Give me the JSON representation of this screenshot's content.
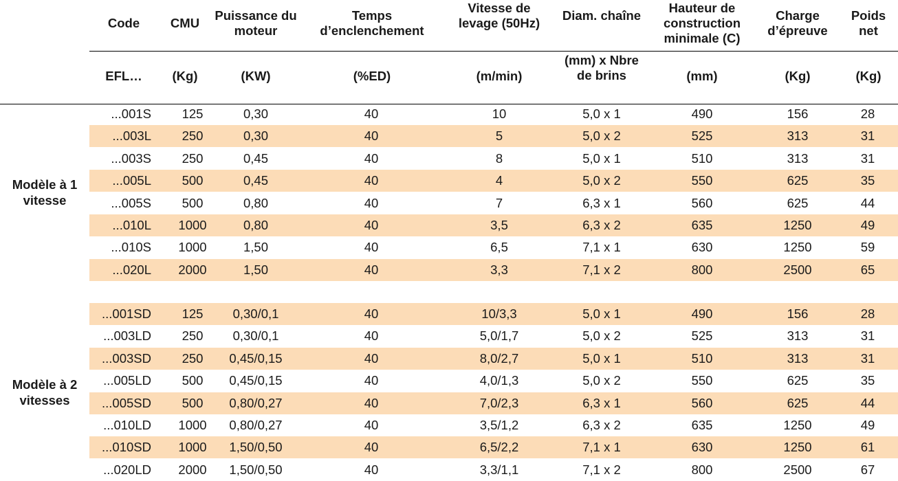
{
  "table": {
    "headers": [
      {
        "key": "code",
        "label": "Code",
        "unit": "EFL…"
      },
      {
        "key": "cmu",
        "label": "CMU",
        "unit": "(Kg)"
      },
      {
        "key": "puissance",
        "label": "Puissance du moteur",
        "unit": "(KW)"
      },
      {
        "key": "temps",
        "label": "Temps d’enclenchement",
        "unit": "(%ED)"
      },
      {
        "key": "vitesse",
        "label": "Vitesse de levage (50Hz)",
        "unit": "(m/min)"
      },
      {
        "key": "diam",
        "label": "Diam. chaîne",
        "unit": "(mm) x Nbre de brins"
      },
      {
        "key": "hauteur",
        "label": "Hauteur de construction minimale (C)",
        "unit": "(mm)"
      },
      {
        "key": "charge",
        "label": "Charge d’épreuve",
        "unit": "(Kg)"
      },
      {
        "key": "poids",
        "label": "Poids net",
        "unit": "(Kg)"
      }
    ],
    "groups": [
      {
        "label": "Modèle à 1 vitesse",
        "rows": [
          [
            "...001S",
            "125",
            "0,30",
            "40",
            "10",
            "5,0 x 1",
            "490",
            "156",
            "28"
          ],
          [
            "...003L",
            "250",
            "0,30",
            "40",
            "5",
            "5,0 x 2",
            "525",
            "313",
            "31"
          ],
          [
            "...003S",
            "250",
            "0,45",
            "40",
            "8",
            "5,0 x 1",
            "510",
            "313",
            "31"
          ],
          [
            "...005L",
            "500",
            "0,45",
            "40",
            "4",
            "5,0 x 2",
            "550",
            "625",
            "35"
          ],
          [
            "...005S",
            "500",
            "0,80",
            "40",
            "7",
            "6,3 x 1",
            "560",
            "625",
            "44"
          ],
          [
            "...010L",
            "1000",
            "0,80",
            "40",
            "3,5",
            "6,3 x 2",
            "635",
            "1250",
            "49"
          ],
          [
            "...010S",
            "1000",
            "1,50",
            "40",
            "6,5",
            "7,1 x 1",
            "630",
            "1250",
            "59"
          ],
          [
            "...020L",
            "2000",
            "1,50",
            "40",
            "3,3",
            "7,1 x 2",
            "800",
            "2500",
            "65"
          ]
        ]
      },
      {
        "label": "Modèle à 2 vitesses",
        "rows": [
          [
            "...001SD",
            "125",
            "0,30/0,1",
            "40",
            "10/3,3",
            "5,0 x 1",
            "490",
            "156",
            "28"
          ],
          [
            "...003LD",
            "250",
            "0,30/0,1",
            "40",
            "5,0/1,7",
            "5,0 x 2",
            "525",
            "313",
            "31"
          ],
          [
            "...003SD",
            "250",
            "0,45/0,15",
            "40",
            "8,0/2,7",
            "5,0 x 1",
            "510",
            "313",
            "31"
          ],
          [
            "...005LD",
            "500",
            "0,45/0,15",
            "40",
            "4,0/1,3",
            "5,0 x 2",
            "550",
            "625",
            "35"
          ],
          [
            "...005SD",
            "500",
            "0,80/0,27",
            "40",
            "7,0/2,3",
            "6,3 x 1",
            "560",
            "625",
            "44"
          ],
          [
            "...010LD",
            "1000",
            "0,80/0,27",
            "40",
            "3,5/1,2",
            "6,3 x 2",
            "635",
            "1250",
            "49"
          ],
          [
            "...010SD",
            "1000",
            "1,50/0,50",
            "40",
            "6,5/2,2",
            "7,1 x 1",
            "630",
            "1250",
            "61"
          ],
          [
            "...020LD",
            "2000",
            "1,50/0,50",
            "40",
            "3,3/1,1",
            "7,1 x 2",
            "800",
            "2500",
            "67"
          ]
        ]
      }
    ]
  },
  "colors": {
    "band": "#fcdcb7",
    "rule": "#000000",
    "text": "#1a1a1a"
  }
}
